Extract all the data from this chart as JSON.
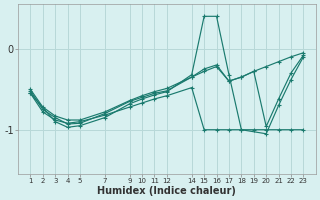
{
  "xlabel": "Humidex (Indice chaleur)",
  "bg_color": "#d8f0f0",
  "line_color": "#1a7a6e",
  "grid_color": "#b8d8d8",
  "x_ticks": [
    1,
    2,
    3,
    4,
    5,
    7,
    9,
    10,
    11,
    12,
    14,
    15,
    16,
    17,
    18,
    19,
    20,
    21,
    22,
    23
  ],
  "ylim": [
    -1.55,
    0.55
  ],
  "xlim": [
    0.0,
    24.0
  ],
  "yticks": [
    -1,
    0
  ],
  "line1_x": [
    1,
    2,
    3,
    4,
    5,
    7,
    9,
    10,
    11,
    12,
    14,
    15,
    16,
    17,
    18,
    19,
    20,
    21,
    22,
    23
  ],
  "line1_y": [
    -0.55,
    -0.78,
    -0.88,
    -0.92,
    -0.9,
    -0.82,
    -0.72,
    -0.67,
    -0.62,
    -0.58,
    -0.48,
    -1.0,
    -1.0,
    -1.0,
    -1.0,
    -1.0,
    -1.0,
    -1.0,
    -1.0,
    -1.0
  ],
  "line2_x": [
    1,
    2,
    3,
    4,
    5,
    7,
    9,
    10,
    11,
    12,
    14,
    15,
    16,
    17,
    18,
    19,
    20,
    21,
    22,
    23
  ],
  "line2_y": [
    -0.5,
    -0.72,
    -0.83,
    -0.88,
    -0.88,
    -0.78,
    -0.64,
    -0.58,
    -0.53,
    -0.49,
    -0.35,
    -0.28,
    -0.22,
    -0.4,
    -0.35,
    -0.28,
    -0.22,
    -0.16,
    -0.1,
    -0.05
  ],
  "line3_x": [
    1,
    3,
    4,
    5,
    7,
    9,
    10,
    11,
    12,
    14,
    15,
    16,
    17,
    18,
    20,
    21,
    22,
    23
  ],
  "line3_y": [
    -0.55,
    -0.9,
    -0.97,
    -0.95,
    -0.85,
    -0.68,
    -0.62,
    -0.57,
    -0.53,
    -0.32,
    0.4,
    0.4,
    -0.32,
    -1.0,
    -1.05,
    -0.7,
    -0.38,
    -0.1
  ],
  "line4_x": [
    1,
    2,
    3,
    4,
    5,
    7,
    9,
    10,
    11,
    12,
    14,
    15,
    16,
    17,
    18,
    19,
    20,
    21,
    22,
    23
  ],
  "line4_y": [
    -0.52,
    -0.75,
    -0.85,
    -0.93,
    -0.92,
    -0.8,
    -0.65,
    -0.6,
    -0.55,
    -0.52,
    -0.35,
    -0.25,
    -0.2,
    -0.4,
    -0.35,
    -0.28,
    -0.96,
    -0.62,
    -0.3,
    -0.08
  ]
}
